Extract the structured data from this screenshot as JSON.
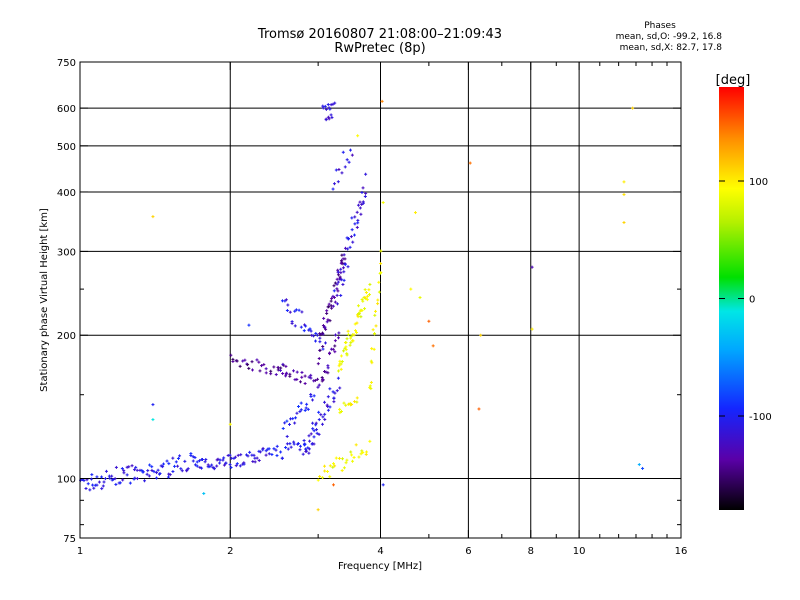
{
  "chart_data": {
    "type": "scatter",
    "title": "Tromsø 20160807 21:08:00–21:09:43",
    "subtitle": "RwPretec (8p)",
    "xlabel": "Frequency [MHz]",
    "ylabel": "Stationary phase Virtual Height [km]",
    "xscale": "log",
    "yscale": "log",
    "xlim": [
      1,
      16
    ],
    "ylim": [
      75,
      750
    ],
    "x_ticks": [
      1,
      2,
      4,
      6,
      8,
      10,
      16
    ],
    "y_ticks": [
      75,
      100,
      200,
      300,
      400,
      500,
      600,
      750
    ],
    "grid": true,
    "phases_legend": {
      "title": "Phases",
      "o_line": "mean, sd,O: -99.2, 16.8",
      "x_line": "mean, sd,X: 82.7, 17.8"
    },
    "colorbar": {
      "label": "[deg]",
      "ticks": [
        100,
        0,
        -100
      ],
      "range": [
        -180,
        180
      ]
    },
    "traces": [
      {
        "x": [
          1.0,
          1.3
        ],
        "y": [
          97,
          103
        ],
        "phase": -108,
        "n": 45,
        "jitter": 0.045
      },
      {
        "x": [
          1.3,
          1.7
        ],
        "y": [
          100,
          110
        ],
        "phase": -105,
        "n": 45,
        "jitter": 0.045
      },
      {
        "x": [
          1.7,
          2.0
        ],
        "y": [
          106,
          110
        ],
        "phase": -110,
        "n": 30,
        "jitter": 0.03
      },
      {
        "x": [
          2.0,
          2.4
        ],
        "y": [
          108,
          113
        ],
        "phase": -108,
        "n": 30,
        "jitter": 0.03
      },
      {
        "x": [
          2.4,
          3.0
        ],
        "y": [
          112,
          122
        ],
        "phase": -103,
        "n": 30,
        "jitter": 0.04
      },
      {
        "x": [
          2.55,
          2.95
        ],
        "y": [
          125,
          150
        ],
        "phase": -98,
        "n": 22,
        "jitter": 0.04
      },
      {
        "x": [
          2.8,
          3.3
        ],
        "y": [
          112,
          160
        ],
        "phase": -108,
        "n": 38,
        "jitter": 0.05
      },
      {
        "x": [
          3.0,
          3.8
        ],
        "y": [
          100,
          118
        ],
        "phase": 90,
        "n": 30,
        "jitter": 0.04
      },
      {
        "x": [
          3.3,
          3.6
        ],
        "y": [
          140,
          145
        ],
        "phase": 95,
        "n": 12,
        "jitter": 0.02
      },
      {
        "x": [
          2.0,
          2.6
        ],
        "y": [
          178,
          168
        ],
        "phase": -140,
        "n": 30,
        "jitter": 0.03
      },
      {
        "x": [
          2.5,
          3.05
        ],
        "y": [
          170,
          158
        ],
        "phase": -135,
        "n": 26,
        "jitter": 0.03
      },
      {
        "x": [
          3.05,
          3.3
        ],
        "y": [
          160,
          200
        ],
        "phase": -135,
        "n": 18,
        "jitter": 0.03
      },
      {
        "x": [
          2.55,
          3.1
        ],
        "y": [
          232,
          192
        ],
        "phase": -108,
        "n": 30,
        "jitter": 0.05
      },
      {
        "x": [
          3.0,
          3.4
        ],
        "y": [
          185,
          300
        ],
        "phase": -140,
        "n": 50,
        "jitter": 0.06
      },
      {
        "x": [
          3.25,
          3.75
        ],
        "y": [
          240,
          420
        ],
        "phase": -112,
        "n": 45,
        "jitter": 0.07
      },
      {
        "x": [
          3.3,
          3.8
        ],
        "y": [
          172,
          250
        ],
        "phase": 88,
        "n": 55,
        "jitter": 0.05
      },
      {
        "x": [
          3.8,
          4.0
        ],
        "y": [
          150,
          290
        ],
        "phase": 92,
        "n": 22,
        "jitter": 0.05
      },
      {
        "x": [
          3.05,
          3.25
        ],
        "y": [
          605,
          610
        ],
        "phase": -115,
        "n": 10,
        "jitter": 0.02
      },
      {
        "x": [
          3.2,
          3.5
        ],
        "y": [
          420,
          500
        ],
        "phase": -115,
        "n": 12,
        "jitter": 0.05
      },
      {
        "x": [
          3.1,
          3.2
        ],
        "y": [
          560,
          580
        ],
        "phase": -115,
        "n": 6,
        "jitter": 0.02
      }
    ],
    "points": [
      {
        "x": 1.4,
        "y": 355,
        "phase": 110
      },
      {
        "x": 1.4,
        "y": 143,
        "phase": -100
      },
      {
        "x": 1.4,
        "y": 133,
        "phase": -10
      },
      {
        "x": 1.77,
        "y": 93,
        "phase": -30
      },
      {
        "x": 2.18,
        "y": 210,
        "phase": -90
      },
      {
        "x": 2.0,
        "y": 130,
        "phase": 95
      },
      {
        "x": 3.22,
        "y": 97,
        "phase": 150
      },
      {
        "x": 3.0,
        "y": 86,
        "phase": 110
      },
      {
        "x": 3.6,
        "y": 525,
        "phase": 95
      },
      {
        "x": 4.03,
        "y": 620,
        "phase": 140
      },
      {
        "x": 4.05,
        "y": 97,
        "phase": -100
      },
      {
        "x": 4.05,
        "y": 380,
        "phase": 90
      },
      {
        "x": 4.6,
        "y": 250,
        "phase": 95
      },
      {
        "x": 4.7,
        "y": 362,
        "phase": 100
      },
      {
        "x": 4.8,
        "y": 240,
        "phase": 85
      },
      {
        "x": 5.0,
        "y": 214,
        "phase": 150
      },
      {
        "x": 5.1,
        "y": 190,
        "phase": 145
      },
      {
        "x": 6.05,
        "y": 460,
        "phase": 145
      },
      {
        "x": 6.35,
        "y": 200,
        "phase": 110
      },
      {
        "x": 6.3,
        "y": 140,
        "phase": 150
      },
      {
        "x": 8.05,
        "y": 278,
        "phase": -130
      },
      {
        "x": 8.05,
        "y": 206,
        "phase": 100
      },
      {
        "x": 12.3,
        "y": 420,
        "phase": 100
      },
      {
        "x": 12.3,
        "y": 395,
        "phase": 105
      },
      {
        "x": 12.3,
        "y": 345,
        "phase": 110
      },
      {
        "x": 12.8,
        "y": 600,
        "phase": 110
      },
      {
        "x": 13.2,
        "y": 107,
        "phase": -40
      },
      {
        "x": 13.4,
        "y": 105,
        "phase": -80
      }
    ]
  }
}
